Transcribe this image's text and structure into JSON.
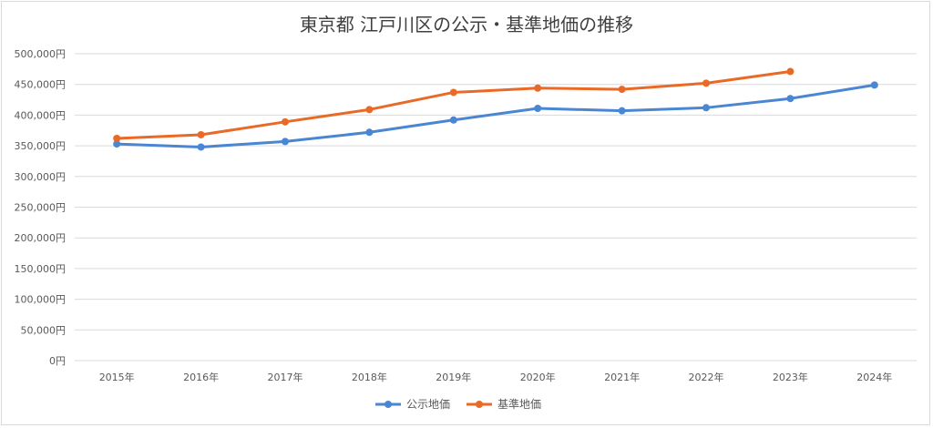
{
  "chart_data": {
    "type": "line",
    "title": "東京都 江戸川区の公示・基準地価の推移",
    "xlabel": "",
    "ylabel": "",
    "categories": [
      "2015年",
      "2016年",
      "2017年",
      "2018年",
      "2019年",
      "2020年",
      "2021年",
      "2022年",
      "2023年",
      "2024年"
    ],
    "ylim": [
      0,
      500000
    ],
    "yticks": [
      0,
      50000,
      100000,
      150000,
      200000,
      250000,
      300000,
      350000,
      400000,
      450000,
      500000
    ],
    "ytick_labels": [
      "0円",
      "50,000円",
      "100,000円",
      "150,000円",
      "200,000円",
      "250,000円",
      "300,000円",
      "350,000円",
      "400,000円",
      "450,000円",
      "500,000円"
    ],
    "grid": true,
    "legend_position": "bottom",
    "series": [
      {
        "name": "公示地価",
        "color": "#4a86d2",
        "values": [
          353000,
          348000,
          357000,
          372000,
          392000,
          411000,
          407000,
          412000,
          427000,
          449000
        ]
      },
      {
        "name": "基準地価",
        "color": "#e86a26",
        "values": [
          362000,
          368000,
          389000,
          409000,
          437000,
          444000,
          442000,
          452000,
          471000,
          null
        ]
      }
    ]
  }
}
